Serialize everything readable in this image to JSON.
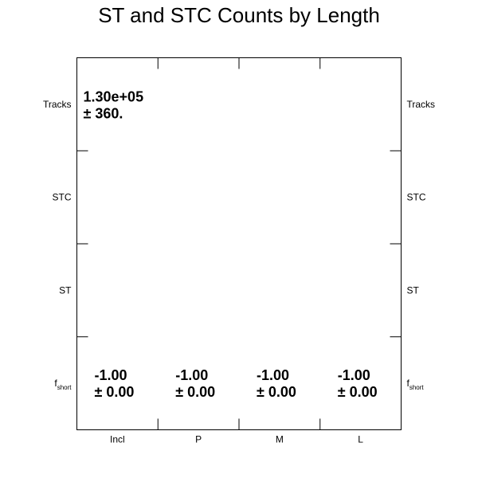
{
  "chart_data": {
    "type": "table",
    "title": "ST and STC Counts by Length",
    "columns": [
      "Incl",
      "P",
      "M",
      "L"
    ],
    "rows": [
      {
        "label": "Tracks",
        "label_sub": ""
      },
      {
        "label": "STC",
        "label_sub": ""
      },
      {
        "label": "ST",
        "label_sub": ""
      },
      {
        "label": "f",
        "label_sub": "short"
      }
    ],
    "cells": [
      {
        "row": 0,
        "col": 0,
        "value": "1.30e+05",
        "error": "± 360."
      },
      {
        "row": 3,
        "col": 0,
        "value": "-1.00",
        "error": "± 0.00"
      },
      {
        "row": 3,
        "col": 1,
        "value": "-1.00",
        "error": "± 0.00"
      },
      {
        "row": 3,
        "col": 2,
        "value": "-1.00",
        "error": "± 0.00"
      },
      {
        "row": 3,
        "col": 3,
        "value": "-1.00",
        "error": "± 0.00"
      }
    ]
  }
}
